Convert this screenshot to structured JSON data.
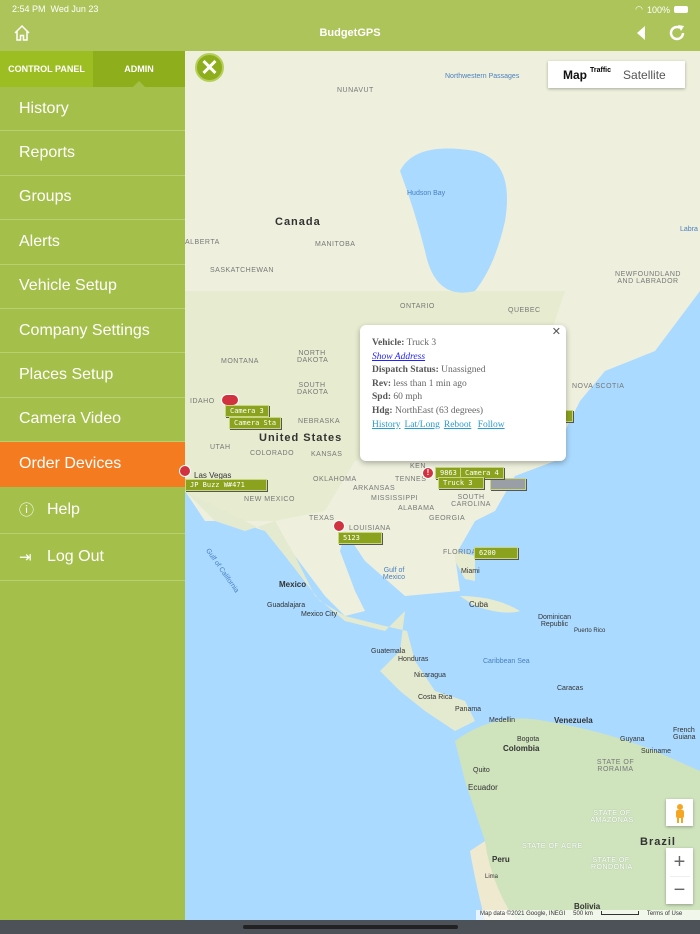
{
  "status_bar": {
    "time": "2:54 PM",
    "date": "Wed Jun 23",
    "battery": "100%"
  },
  "header": {
    "title": "BudgetGPS",
    "home_icon": "home-icon",
    "back_icon": "back-triangle-icon",
    "refresh_icon": "refresh-icon"
  },
  "sidebar": {
    "tabs": [
      {
        "label": "CONTROL PANEL",
        "active": false
      },
      {
        "label": "ADMIN",
        "active": true
      }
    ],
    "items": [
      {
        "label": "History"
      },
      {
        "label": "Reports"
      },
      {
        "label": "Groups"
      },
      {
        "label": "Alerts"
      },
      {
        "label": "Vehicle Setup"
      },
      {
        "label": "Company Settings"
      },
      {
        "label": "Places Setup"
      },
      {
        "label": "Camera Video"
      },
      {
        "label": "Order Devices",
        "active": true
      },
      {
        "label": "Help",
        "icon": "info-icon"
      },
      {
        "label": "Log Out",
        "icon": "logout-icon"
      }
    ],
    "active_color": "#f47b20"
  },
  "map": {
    "type_control": {
      "map": "Map",
      "traffic": "Traffic",
      "satellite": "Satellite"
    },
    "labels": {
      "canada": "Canada",
      "us": "United States",
      "mexico": "Mexico",
      "brazil": "Brazil",
      "peru": "Peru",
      "bolivia": "Bolivia",
      "colombia": "Colombia",
      "venezuela": "Venezuela",
      "ecuador": "Ecuador",
      "cuba": "Cuba",
      "nunavut": "NUNAVUT",
      "nw_passages": "Northwestern Passages",
      "hudson_bay": "Hudson Bay",
      "alberta": "ALBERTA",
      "manitoba": "MANITOBA",
      "saskatchewan": "SASKATCHEWAN",
      "ontario": "ONTARIO",
      "quebec": "QUEBEC",
      "newfoundland": "NEWFOUNDLAND AND LABRADOR",
      "nova_scotia": "NOVA SCOTIA",
      "labrador_sea": "Labra",
      "montana": "MONTANA",
      "north_dakota": "NORTH DAKOTA",
      "south_dakota": "SOUTH DAKOTA",
      "idaho": "IDAHO",
      "nebraska": "NEBRASKA",
      "utah": "UTAH",
      "colorado": "COLORADO",
      "kansas": "KANSAS",
      "oklahoma": "OKLAHOMA",
      "arkansas": "ARKANSAS",
      "new_mexico": "NEW MEXICO",
      "texas": "TEXAS",
      "louisiana": "LOUISIANA",
      "mississippi": "MISSISSIPPI",
      "alabama": "ALABAMA",
      "georgia": "GEORGIA",
      "tennessee": "TENNES",
      "kentucky": "KEN",
      "south_carolina": "SOUTH CAROLINA",
      "florida": "FLORIDA",
      "las_vegas": "Las Vegas",
      "gulf_california": "Gulf of California",
      "gulf_mexico": "Gulf of Mexico",
      "miami": "Miami",
      "guadalajara": "Guadalajara",
      "mexico_city": "Mexico City",
      "guatemala": "Guatemala",
      "honduras": "Honduras",
      "nicaragua": "Nicaragua",
      "costa_rica": "Costa Rica",
      "panama": "Panama",
      "caribbean": "Caribbean Sea",
      "dominican": "Dominican Republic",
      "puerto_rico": "Puerto Rico",
      "caracas": "Caracas",
      "medellin": "Medellin",
      "bogota": "Bogota",
      "quito": "Quito",
      "guyana": "Guyana",
      "suriname": "Suriname",
      "french_guiana": "French Guiana",
      "roraima": "STATE OF RORAIMA",
      "amazonas": "STATE OF AMAZONAS",
      "acre": "STATE OF ACRE",
      "rondonia": "STATE OF RONDÔNIA",
      "lima": "Lima"
    },
    "markers": [
      {
        "label": "Camera 3"
      },
      {
        "label": "Camera Sta"
      },
      {
        "label": "JP Buzz W#471"
      },
      {
        "label": "9863"
      },
      {
        "label": "Camera 4"
      },
      {
        "label": "Truck 3"
      },
      {
        "label": "5123"
      },
      {
        "label": "6200"
      }
    ],
    "popup": {
      "vehicle_label": "Vehicle:",
      "vehicle": "Truck 3",
      "show_address": "Show Address",
      "dispatch_label": "Dispatch Status:",
      "dispatch": "Unassigned",
      "rev_label": "Rev:",
      "rev": "less than 1 min ago",
      "spd_label": "Spd:",
      "spd": "60 mph",
      "hdg_label": "Hdg:",
      "hdg": "NorthEast (63 degrees)",
      "links": [
        "History",
        "Lat/Long",
        "Reboot",
        "Follow"
      ]
    },
    "attribution": {
      "data": "Map data ©2021 Google, INEGI",
      "scale": "500 km",
      "terms": "Terms of Use"
    },
    "zoom_in": "+",
    "zoom_out": "−"
  }
}
